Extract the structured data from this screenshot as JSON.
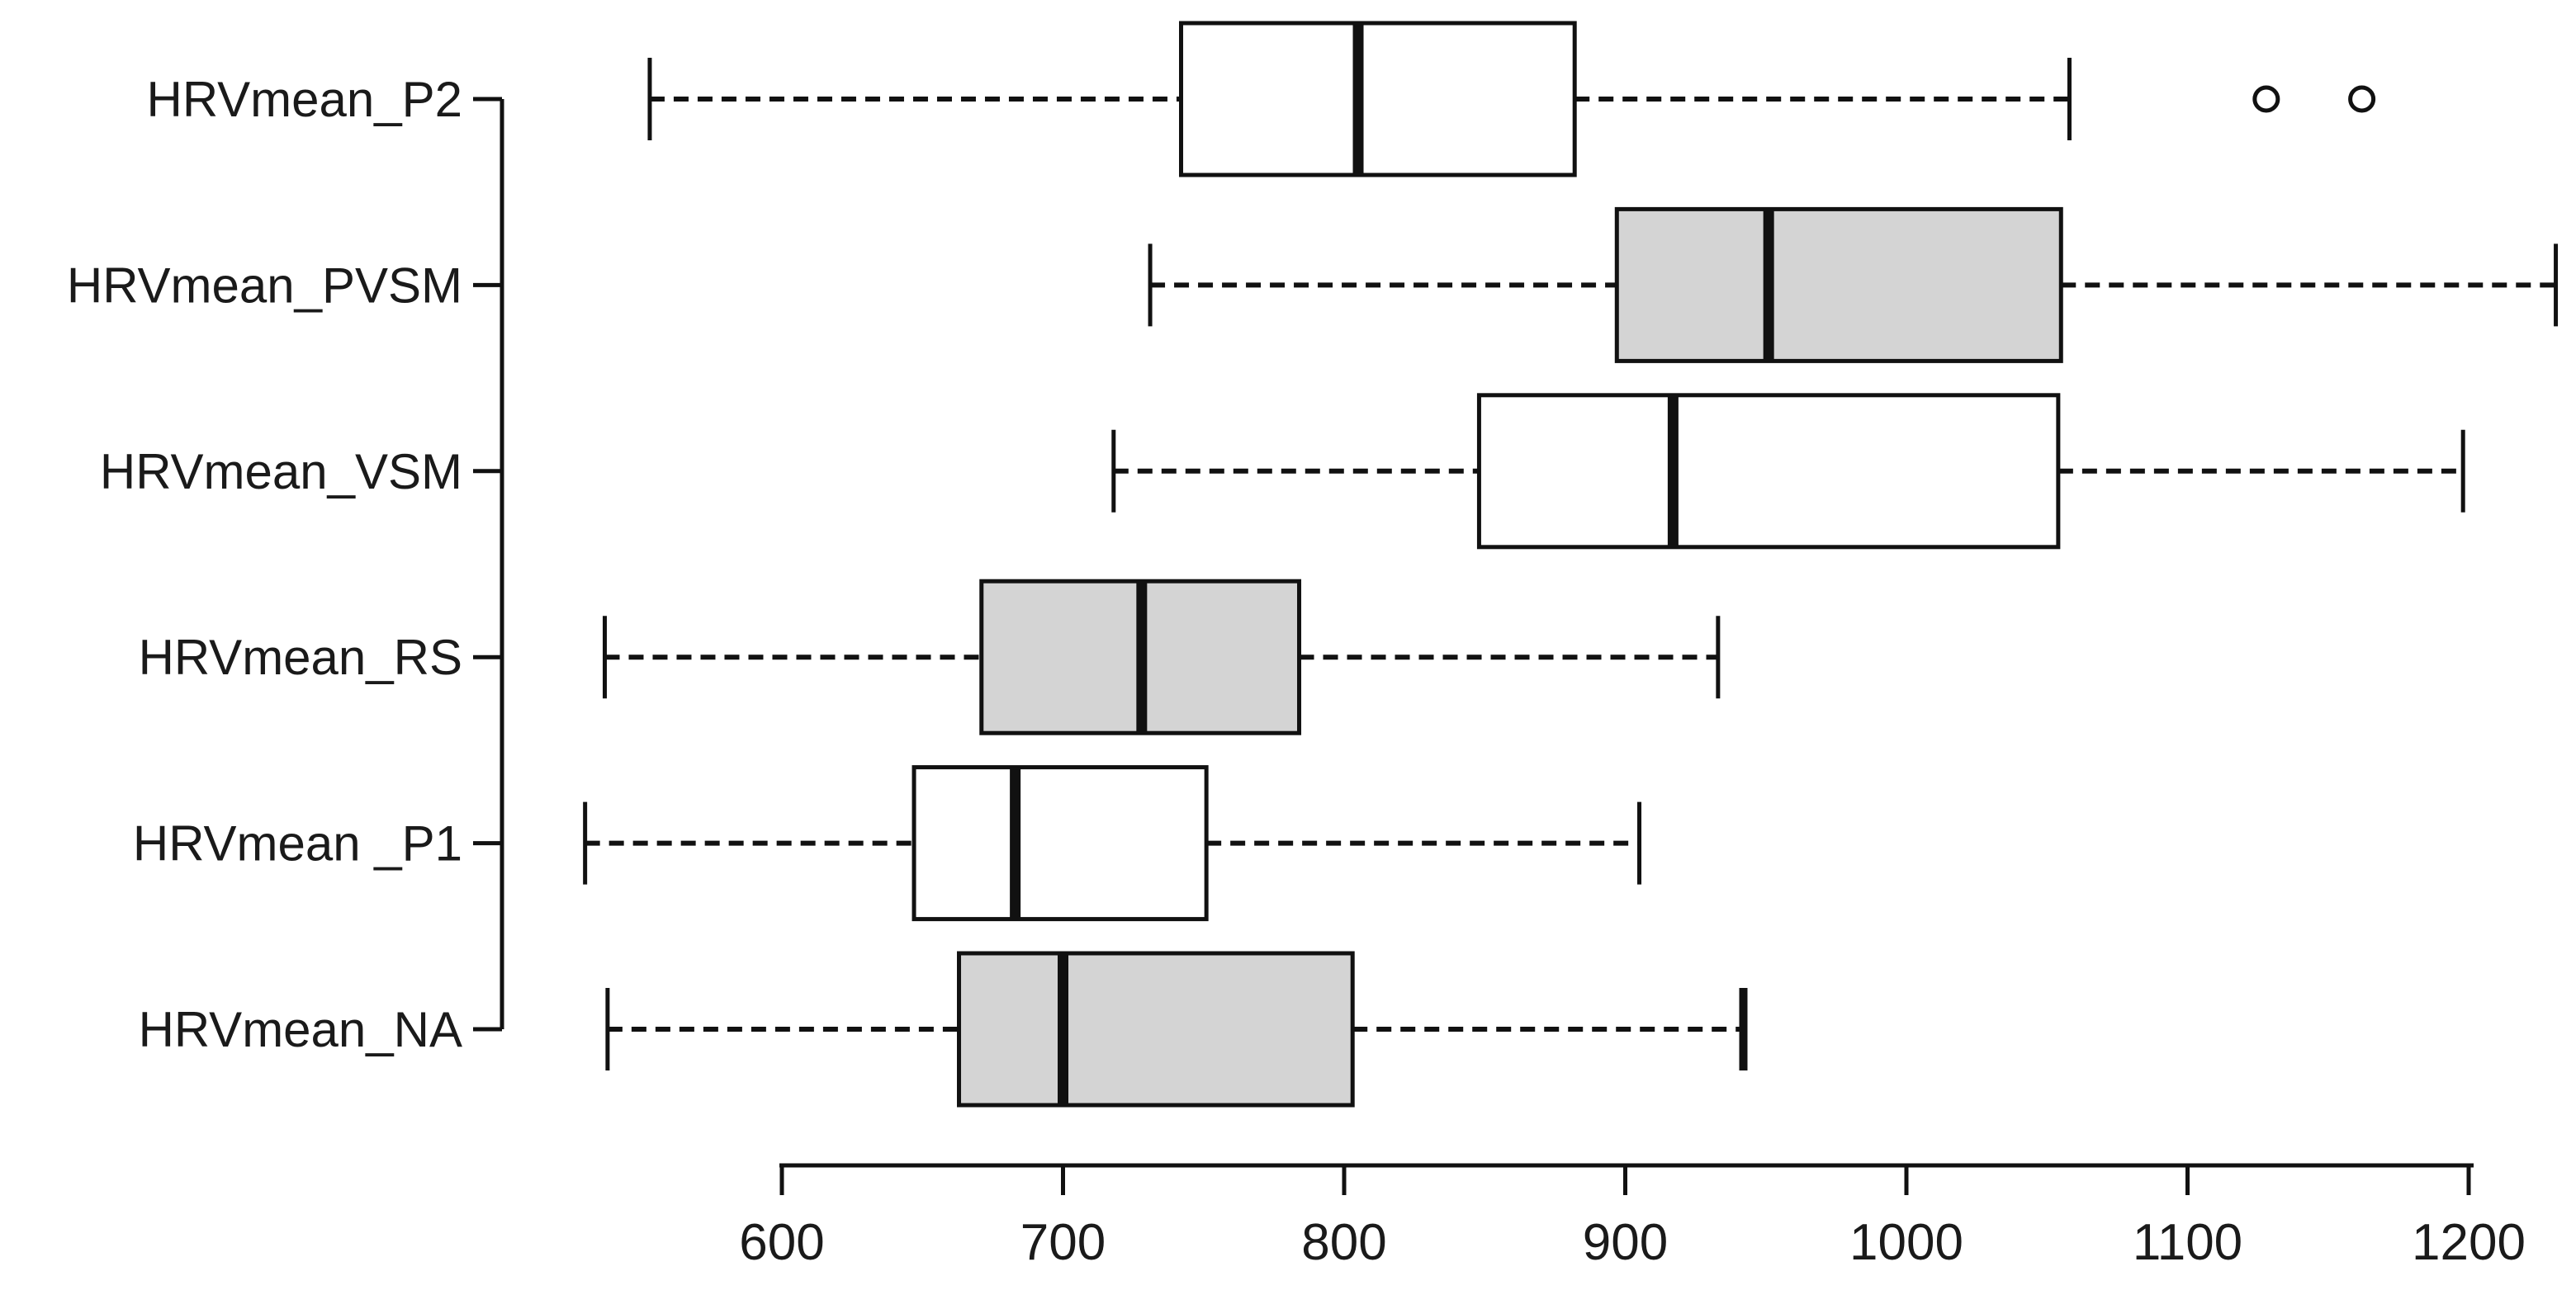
{
  "chart_data": {
    "type": "boxplot",
    "orientation": "horizontal",
    "title": "",
    "xlabel": "",
    "ylabel": "",
    "x_axis": {
      "ticks": [
        600,
        700,
        800,
        900,
        1000,
        1100,
        1200
      ],
      "tick_labels": [
        "600",
        "700",
        "800",
        "900",
        "1000",
        "1100",
        "1200"
      ],
      "range_shown": [
        600,
        1200
      ]
    },
    "categories_top_to_bottom": [
      "HRVmean_P2",
      "HRVmean_PVSM",
      "HRVmean_VSM",
      "HRVmean_RS",
      "HRVmean _P1",
      "HRVmean_NA"
    ],
    "series": [
      {
        "name": "HRVmean_P2",
        "whisker_low": 553,
        "q1": 742,
        "median": 805,
        "q3": 882,
        "whisker_high": 1058,
        "outliers": [
          1128,
          1162
        ],
        "fill": "white",
        "high_cap_bold": false
      },
      {
        "name": "HRVmean_PVSM",
        "whisker_low": 731,
        "q1": 897,
        "median": 951,
        "q3": 1055,
        "whisker_high": 1231,
        "outliers": [],
        "fill": "gray",
        "high_cap_bold": false
      },
      {
        "name": "HRVmean_VSM",
        "whisker_low": 718,
        "q1": 848,
        "median": 917,
        "q3": 1054,
        "whisker_high": 1198,
        "outliers": [],
        "fill": "white",
        "high_cap_bold": false
      },
      {
        "name": "HRVmean_RS",
        "whisker_low": 537,
        "q1": 671,
        "median": 728,
        "q3": 784,
        "whisker_high": 933,
        "outliers": [],
        "fill": "gray",
        "high_cap_bold": false
      },
      {
        "name": "HRVmean _P1",
        "whisker_low": 530,
        "q1": 647,
        "median": 683,
        "q3": 751,
        "whisker_high": 905,
        "outliers": [],
        "fill": "white",
        "high_cap_bold": false
      },
      {
        "name": "HRVmean_NA",
        "whisker_low": 538,
        "q1": 663,
        "median": 700,
        "q3": 803,
        "whisker_high": 942,
        "outliers": [],
        "fill": "gray",
        "high_cap_bold": true
      }
    ],
    "legend": null,
    "grid": false,
    "colors": {
      "stroke": "#111111",
      "box_fill_white": "#ffffff",
      "box_fill_gray": "#d4d4d4",
      "text": "#1a1a1a"
    }
  }
}
